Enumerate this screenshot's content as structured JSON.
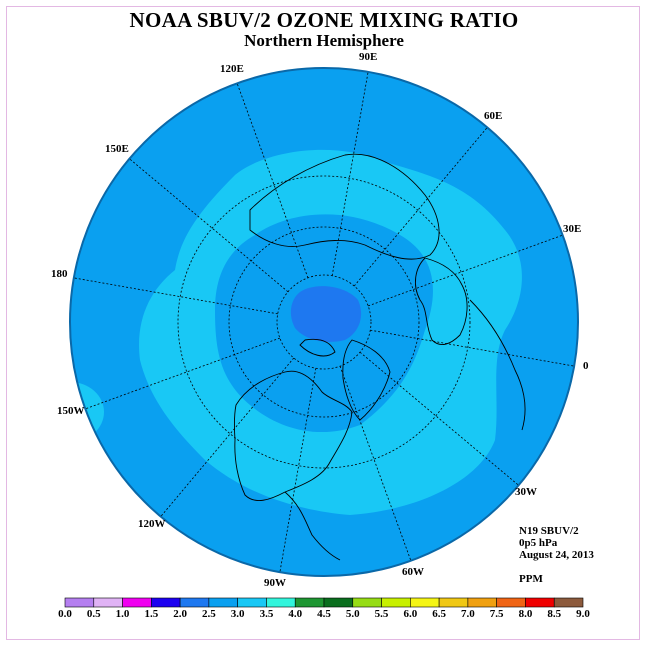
{
  "title": "NOAA SBUV/2 OZONE MIXING RATIO",
  "subtitle": "Northern Hemisphere",
  "longitude_labels": [
    "90E",
    "60E",
    "30E",
    "0",
    "30W",
    "60W",
    "90W",
    "120W",
    "150W",
    "180",
    "150E",
    "120E"
  ],
  "info": {
    "instrument": "N19 SBUV/2",
    "level": "0p5 hPa",
    "date": "August 24, 2013",
    "units": "PPM"
  },
  "colorbar": {
    "ticks": [
      "0.0",
      "0.5",
      "1.0",
      "1.5",
      "2.0",
      "2.5",
      "3.0",
      "3.5",
      "4.0",
      "4.5",
      "5.0",
      "5.5",
      "6.0",
      "6.5",
      "7.0",
      "7.5",
      "8.0",
      "8.5",
      "9.0"
    ],
    "colors": [
      "#b57ff0",
      "#e0b3f5",
      "#f000f0",
      "#1c00f0",
      "#1e78f0",
      "#0aa0f0",
      "#19c8f5",
      "#32f5dc",
      "#1e9632",
      "#0a6e1e",
      "#96dc14",
      "#c8f000",
      "#f5f514",
      "#f0c814",
      "#f0a010",
      "#f06414",
      "#f00000",
      "#8c5a3c"
    ]
  },
  "map_colors": {
    "band_2_5_3_0": "#0aa0f0",
    "band_3_0_3_5": "#19c8f5",
    "band_2_0_2_5": "#1e78f0"
  }
}
